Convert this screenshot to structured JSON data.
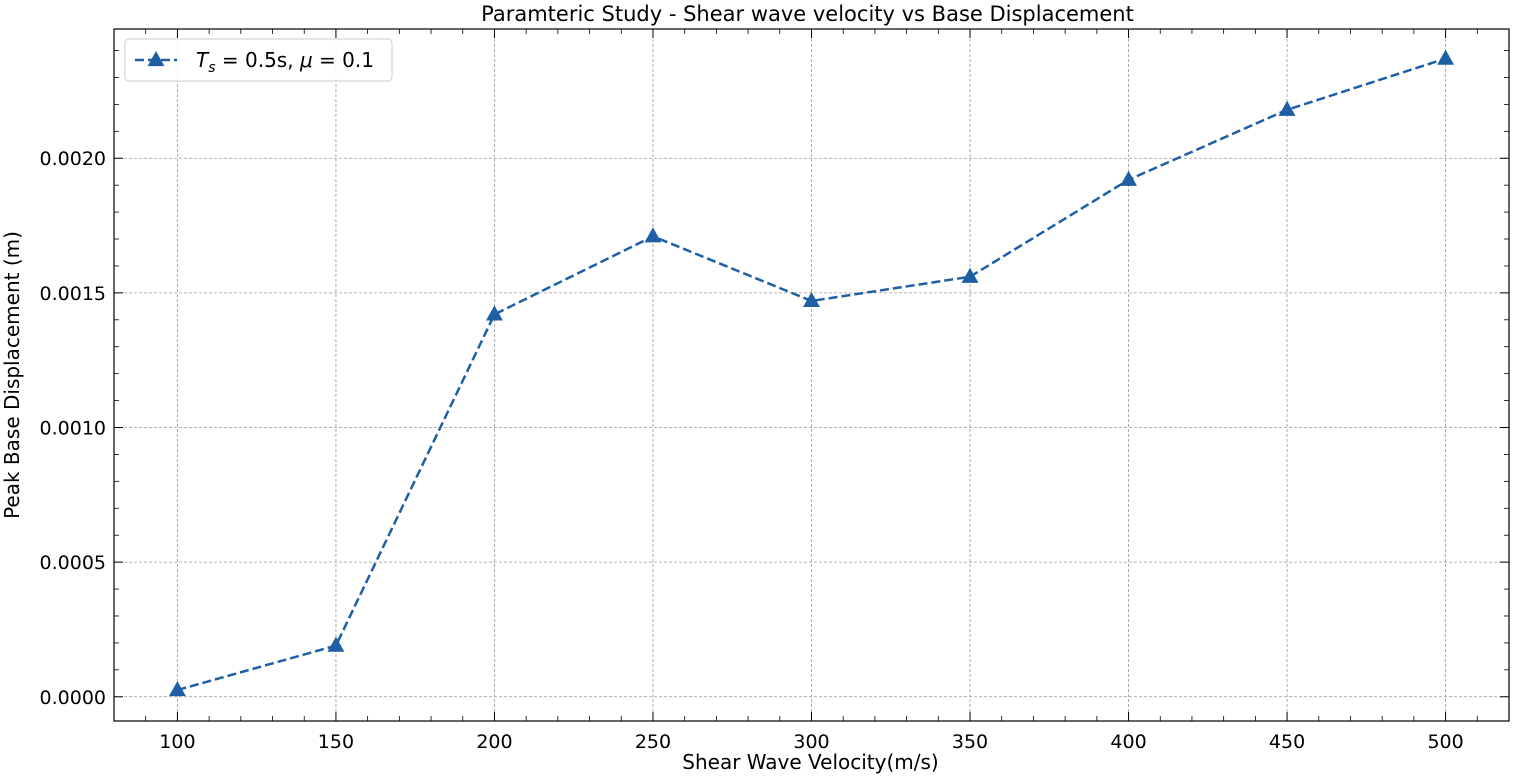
{
  "chart_data": {
    "type": "line",
    "title": "Paramteric Study - Shear wave velocity vs Base Displacement",
    "xlabel": "Shear Wave Velocity(m/s)",
    "ylabel": "Peak Base Displacement (m)",
    "x": [
      100,
      150,
      200,
      250,
      300,
      350,
      400,
      450,
      500
    ],
    "series": [
      {
        "name": "T_s = 0.5s, μ = 0.1",
        "values": [
          2.5e-05,
          0.00019,
          0.00142,
          0.00171,
          0.00147,
          0.00156,
          0.00192,
          0.00218,
          0.00237
        ],
        "color": "#1f5fa5",
        "line_style": "dashed",
        "marker": "triangle-up"
      }
    ],
    "xlim": [
      80,
      520
    ],
    "ylim": [
      -9e-05,
      0.00248
    ],
    "x_ticks": [
      100,
      150,
      200,
      250,
      300,
      350,
      400,
      450,
      500
    ],
    "x_tick_labels": [
      "100",
      "150",
      "200",
      "250",
      "300",
      "350",
      "400",
      "450",
      "500"
    ],
    "y_ticks": [
      0,
      0.0005,
      0.001,
      0.0015,
      0.002
    ],
    "y_tick_labels": [
      "0.0000",
      "0.0005",
      "0.0010",
      "0.0015",
      "0.0020"
    ],
    "grid": true,
    "legend_position": "top-left",
    "legend": {
      "var": "T",
      "sub": "s",
      "eq1": " = 0.5s, ",
      "mu": "μ",
      "eq2": " = 0.1"
    }
  }
}
